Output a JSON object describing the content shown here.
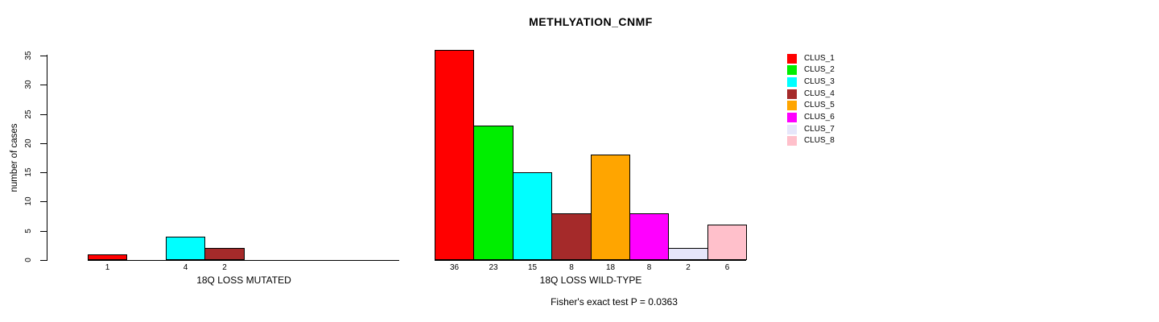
{
  "figure": {
    "title": "METHLYATION_CNMF",
    "ylabel": "number of cases",
    "footnote": "Fisher's exact test P = 0.0363"
  },
  "y_axis": {
    "min": 0,
    "max": 35,
    "ticks": [
      0,
      5,
      10,
      15,
      20,
      25,
      30,
      35
    ]
  },
  "legend": {
    "position": "right",
    "entries": [
      {
        "name": "CLUS_1",
        "color": "#FF0000"
      },
      {
        "name": "CLUS_2",
        "color": "#00EE00"
      },
      {
        "name": "CLUS_3",
        "color": "#00FFFF"
      },
      {
        "name": "CLUS_4",
        "color": "#A52A2A"
      },
      {
        "name": "CLUS_5",
        "color": "#FFA500"
      },
      {
        "name": "CLUS_6",
        "color": "#FF00FF"
      },
      {
        "name": "CLUS_7",
        "color": "#E6E6FA"
      },
      {
        "name": "CLUS_8",
        "color": "#FFC0CB"
      }
    ]
  },
  "chart_data": [
    {
      "type": "bar",
      "title": "METHLYATION_CNMF",
      "xlabel": "18Q LOSS MUTATED",
      "ylabel": "number of cases",
      "ylim": [
        0,
        35
      ],
      "grid": false,
      "legend_position": "right",
      "categories": [
        "CLUS_1",
        "CLUS_2",
        "CLUS_3",
        "CLUS_4",
        "CLUS_5",
        "CLUS_6",
        "CLUS_7",
        "CLUS_8"
      ],
      "values": [
        1,
        0,
        4,
        2,
        0,
        0,
        0,
        0
      ],
      "bar_labels": [
        "1",
        "",
        "4",
        "2",
        "",
        "",
        "",
        ""
      ]
    },
    {
      "type": "bar",
      "title": "METHLYATION_CNMF",
      "xlabel": "18Q LOSS WILD-TYPE",
      "ylabel": "number of cases",
      "ylim": [
        0,
        35
      ],
      "grid": false,
      "legend_position": "right",
      "categories": [
        "CLUS_1",
        "CLUS_2",
        "CLUS_3",
        "CLUS_4",
        "CLUS_5",
        "CLUS_6",
        "CLUS_7",
        "CLUS_8"
      ],
      "values": [
        36,
        23,
        15,
        8,
        18,
        8,
        2,
        6
      ],
      "bar_labels": [
        "36",
        "23",
        "15",
        "8",
        "18",
        "8",
        "2",
        "6"
      ]
    }
  ]
}
